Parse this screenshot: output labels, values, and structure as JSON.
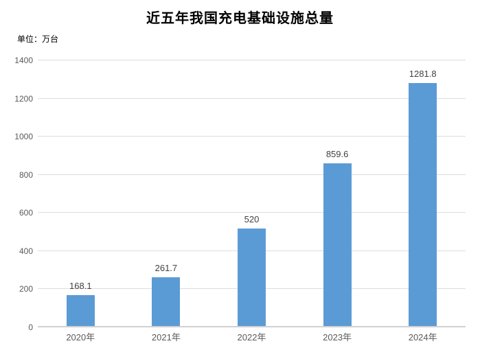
{
  "chart": {
    "title": "近五年我国充电基础设施总量",
    "unit_label": "单位：万台"
  },
  "chart_data": {
    "type": "bar",
    "title": "近五年我国充电基础设施总量",
    "unit_label": "单位：万台",
    "categories": [
      "2020年",
      "2021年",
      "2022年",
      "2023年",
      "2024年"
    ],
    "values": [
      168.1,
      261.7,
      520,
      859.6,
      1281.8
    ],
    "value_labels": [
      "168.1",
      "261.7",
      "520",
      "859.6",
      "1281.8"
    ],
    "xlabel": "",
    "ylabel": "",
    "ylim": [
      0,
      1400
    ],
    "ytick_step": 200,
    "grid": true,
    "legend_position": "none",
    "colors": {
      "bar": "#5B9BD5",
      "gridline": "#DCDCDC",
      "axis_line": "#D0D0D0",
      "tick_label": "#595959",
      "data_label": "#404040",
      "title": "#000000"
    }
  }
}
